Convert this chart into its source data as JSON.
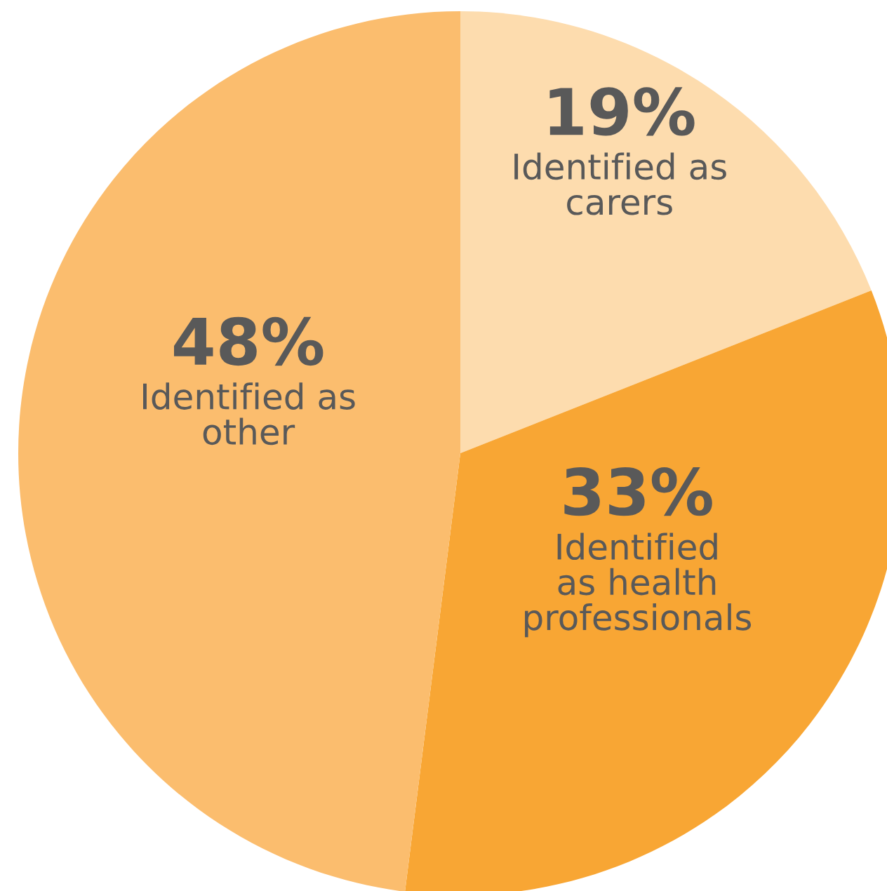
{
  "chart_data": {
    "type": "pie",
    "categories": [
      "Identified as\ncarers",
      "Identified\nas health\nprofessionals",
      "Identified as\nother"
    ],
    "values": [
      19,
      33,
      48
    ],
    "value_labels": [
      "19%",
      "33%",
      "48%"
    ],
    "colors": [
      "#fddcae",
      "#f8a634",
      "#fbbd6e"
    ]
  }
}
